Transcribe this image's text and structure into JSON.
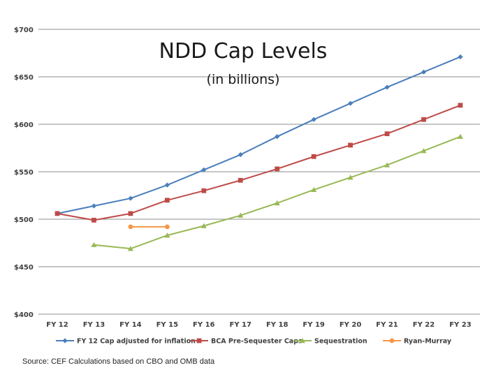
{
  "chart_data": {
    "type": "line",
    "title": "NDD Cap Levels",
    "subtitle": "(in billions)",
    "categories": [
      "FY 12",
      "FY 13",
      "FY 14",
      "FY 15",
      "FY 16",
      "FY 17",
      "FY 18",
      "FY 19",
      "FY 20",
      "FY 21",
      "FY 22",
      "FY 23"
    ],
    "ylim": [
      400,
      700
    ],
    "yticks": [
      400,
      450,
      500,
      550,
      600,
      650,
      700
    ],
    "ytick_labels": [
      "$400",
      "$450",
      "$500",
      "$550",
      "$600",
      "$650",
      "$700"
    ],
    "grid": true,
    "legend_position": "bottom",
    "series": [
      {
        "name": "FY 12 Cap adjusted for inflation",
        "color": "#4a7ebb",
        "marker": "diamond",
        "values": [
          506,
          514,
          522,
          536,
          552,
          568,
          587,
          605,
          622,
          639,
          655,
          671
        ]
      },
      {
        "name": "BCA Pre-Sequester Caps",
        "color": "#be4b48",
        "marker": "square",
        "values": [
          506,
          499,
          506,
          520,
          530,
          541,
          553,
          566,
          578,
          590,
          605,
          620
        ]
      },
      {
        "name": "Sequestration",
        "color": "#98b954",
        "marker": "triangle",
        "values": [
          null,
          473,
          469,
          483,
          493,
          504,
          517,
          531,
          544,
          557,
          572,
          587
        ]
      },
      {
        "name": "Ryan-Murray",
        "color": "#f79646",
        "marker": "circle",
        "values": [
          null,
          null,
          492,
          492,
          null,
          null,
          null,
          null,
          null,
          null,
          null,
          null
        ]
      }
    ]
  },
  "source": "Source:  CEF Calculations based on CBO and OMB data"
}
